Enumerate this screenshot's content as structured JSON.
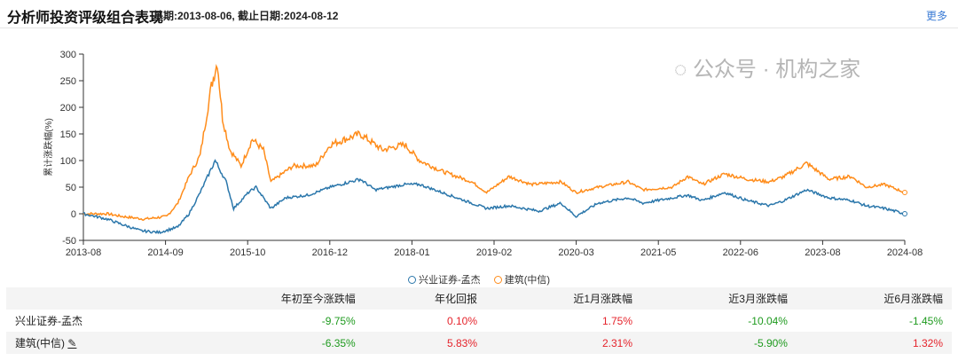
{
  "header": {
    "title": "分析师投资评级组合表现",
    "subtitle": "基期:2013-08-06, 截止日期:2024-08-12",
    "more": "更多"
  },
  "chart_data": {
    "type": "line",
    "ylabel": "累计涨跌幅(%)",
    "ylim": [
      -50,
      300
    ],
    "yticks": [
      "300",
      "250",
      "200",
      "150",
      "100",
      "50",
      "0",
      "-50"
    ],
    "ytick_values": [
      300,
      250,
      200,
      150,
      100,
      50,
      0,
      -50
    ],
    "xlim": [
      2013.58,
      2024.62
    ],
    "xticks": [
      "2013-08",
      "2014-09",
      "2015-10",
      "2016-12",
      "2018-01",
      "2019-02",
      "2020-03",
      "2021-05",
      "2022-06",
      "2023-08",
      "2024-08"
    ],
    "series": [
      {
        "name": "兴业证券-孟杰",
        "color": "#2b77ab",
        "points": [
          [
            2013.58,
            0
          ],
          [
            2013.9,
            -10
          ],
          [
            2014.1,
            -20
          ],
          [
            2014.35,
            -32
          ],
          [
            2014.6,
            -35
          ],
          [
            2014.85,
            -25
          ],
          [
            2015.0,
            0
          ],
          [
            2015.15,
            40
          ],
          [
            2015.35,
            100
          ],
          [
            2015.5,
            60
          ],
          [
            2015.6,
            10
          ],
          [
            2015.8,
            40
          ],
          [
            2015.9,
            50
          ],
          [
            2016.1,
            10
          ],
          [
            2016.3,
            30
          ],
          [
            2016.6,
            35
          ],
          [
            2016.9,
            50
          ],
          [
            2017.3,
            65
          ],
          [
            2017.5,
            45
          ],
          [
            2017.9,
            55
          ],
          [
            2018.1,
            55
          ],
          [
            2018.4,
            40
          ],
          [
            2018.8,
            20
          ],
          [
            2019.0,
            10
          ],
          [
            2019.3,
            15
          ],
          [
            2019.7,
            5
          ],
          [
            2020.0,
            20
          ],
          [
            2020.2,
            -5
          ],
          [
            2020.5,
            20
          ],
          [
            2020.9,
            30
          ],
          [
            2021.1,
            20
          ],
          [
            2021.7,
            35
          ],
          [
            2021.9,
            25
          ],
          [
            2022.2,
            40
          ],
          [
            2022.5,
            25
          ],
          [
            2022.8,
            15
          ],
          [
            2023.0,
            25
          ],
          [
            2023.3,
            45
          ],
          [
            2023.6,
            30
          ],
          [
            2023.9,
            25
          ],
          [
            2024.1,
            15
          ],
          [
            2024.35,
            10
          ],
          [
            2024.62,
            0
          ]
        ]
      },
      {
        "name": "建筑(中信)",
        "color": "#ff8c1a",
        "points": [
          [
            2013.58,
            0
          ],
          [
            2013.9,
            0
          ],
          [
            2014.1,
            -5
          ],
          [
            2014.4,
            -10
          ],
          [
            2014.7,
            -5
          ],
          [
            2014.85,
            20
          ],
          [
            2015.0,
            70
          ],
          [
            2015.15,
            110
          ],
          [
            2015.3,
            240
          ],
          [
            2015.38,
            285
          ],
          [
            2015.45,
            180
          ],
          [
            2015.55,
            120
          ],
          [
            2015.7,
            90
          ],
          [
            2015.85,
            140
          ],
          [
            2016.0,
            120
          ],
          [
            2016.1,
            60
          ],
          [
            2016.4,
            90
          ],
          [
            2016.7,
            90
          ],
          [
            2016.9,
            130
          ],
          [
            2017.3,
            150
          ],
          [
            2017.6,
            120
          ],
          [
            2017.9,
            130
          ],
          [
            2018.1,
            100
          ],
          [
            2018.4,
            80
          ],
          [
            2018.8,
            60
          ],
          [
            2019.0,
            40
          ],
          [
            2019.3,
            70
          ],
          [
            2019.6,
            55
          ],
          [
            2020.0,
            60
          ],
          [
            2020.2,
            40
          ],
          [
            2020.5,
            50
          ],
          [
            2020.9,
            60
          ],
          [
            2021.1,
            45
          ],
          [
            2021.5,
            50
          ],
          [
            2021.7,
            70
          ],
          [
            2021.9,
            55
          ],
          [
            2022.2,
            75
          ],
          [
            2022.5,
            65
          ],
          [
            2022.8,
            60
          ],
          [
            2023.0,
            70
          ],
          [
            2023.3,
            95
          ],
          [
            2023.6,
            65
          ],
          [
            2023.9,
            70
          ],
          [
            2024.1,
            50
          ],
          [
            2024.35,
            55
          ],
          [
            2024.62,
            40
          ]
        ]
      }
    ]
  },
  "legend": [
    "兴业证券-孟杰",
    "建筑(中信)"
  ],
  "table": {
    "headers": [
      "",
      "年初至今涨跌幅",
      "年化回报",
      "近1月涨跌幅",
      "近3月涨跌幅",
      "近6月涨跌幅"
    ],
    "rows": [
      {
        "name": "兴业证券-孟杰",
        "values": [
          "-9.75%",
          "0.10%",
          "1.75%",
          "-10.04%",
          "-1.45%"
        ]
      },
      {
        "name": "建筑(中信)",
        "values": [
          "-6.35%",
          "5.83%",
          "2.31%",
          "-5.90%",
          "1.32%"
        ]
      }
    ]
  },
  "watermark": "公众号 · 机构之家"
}
